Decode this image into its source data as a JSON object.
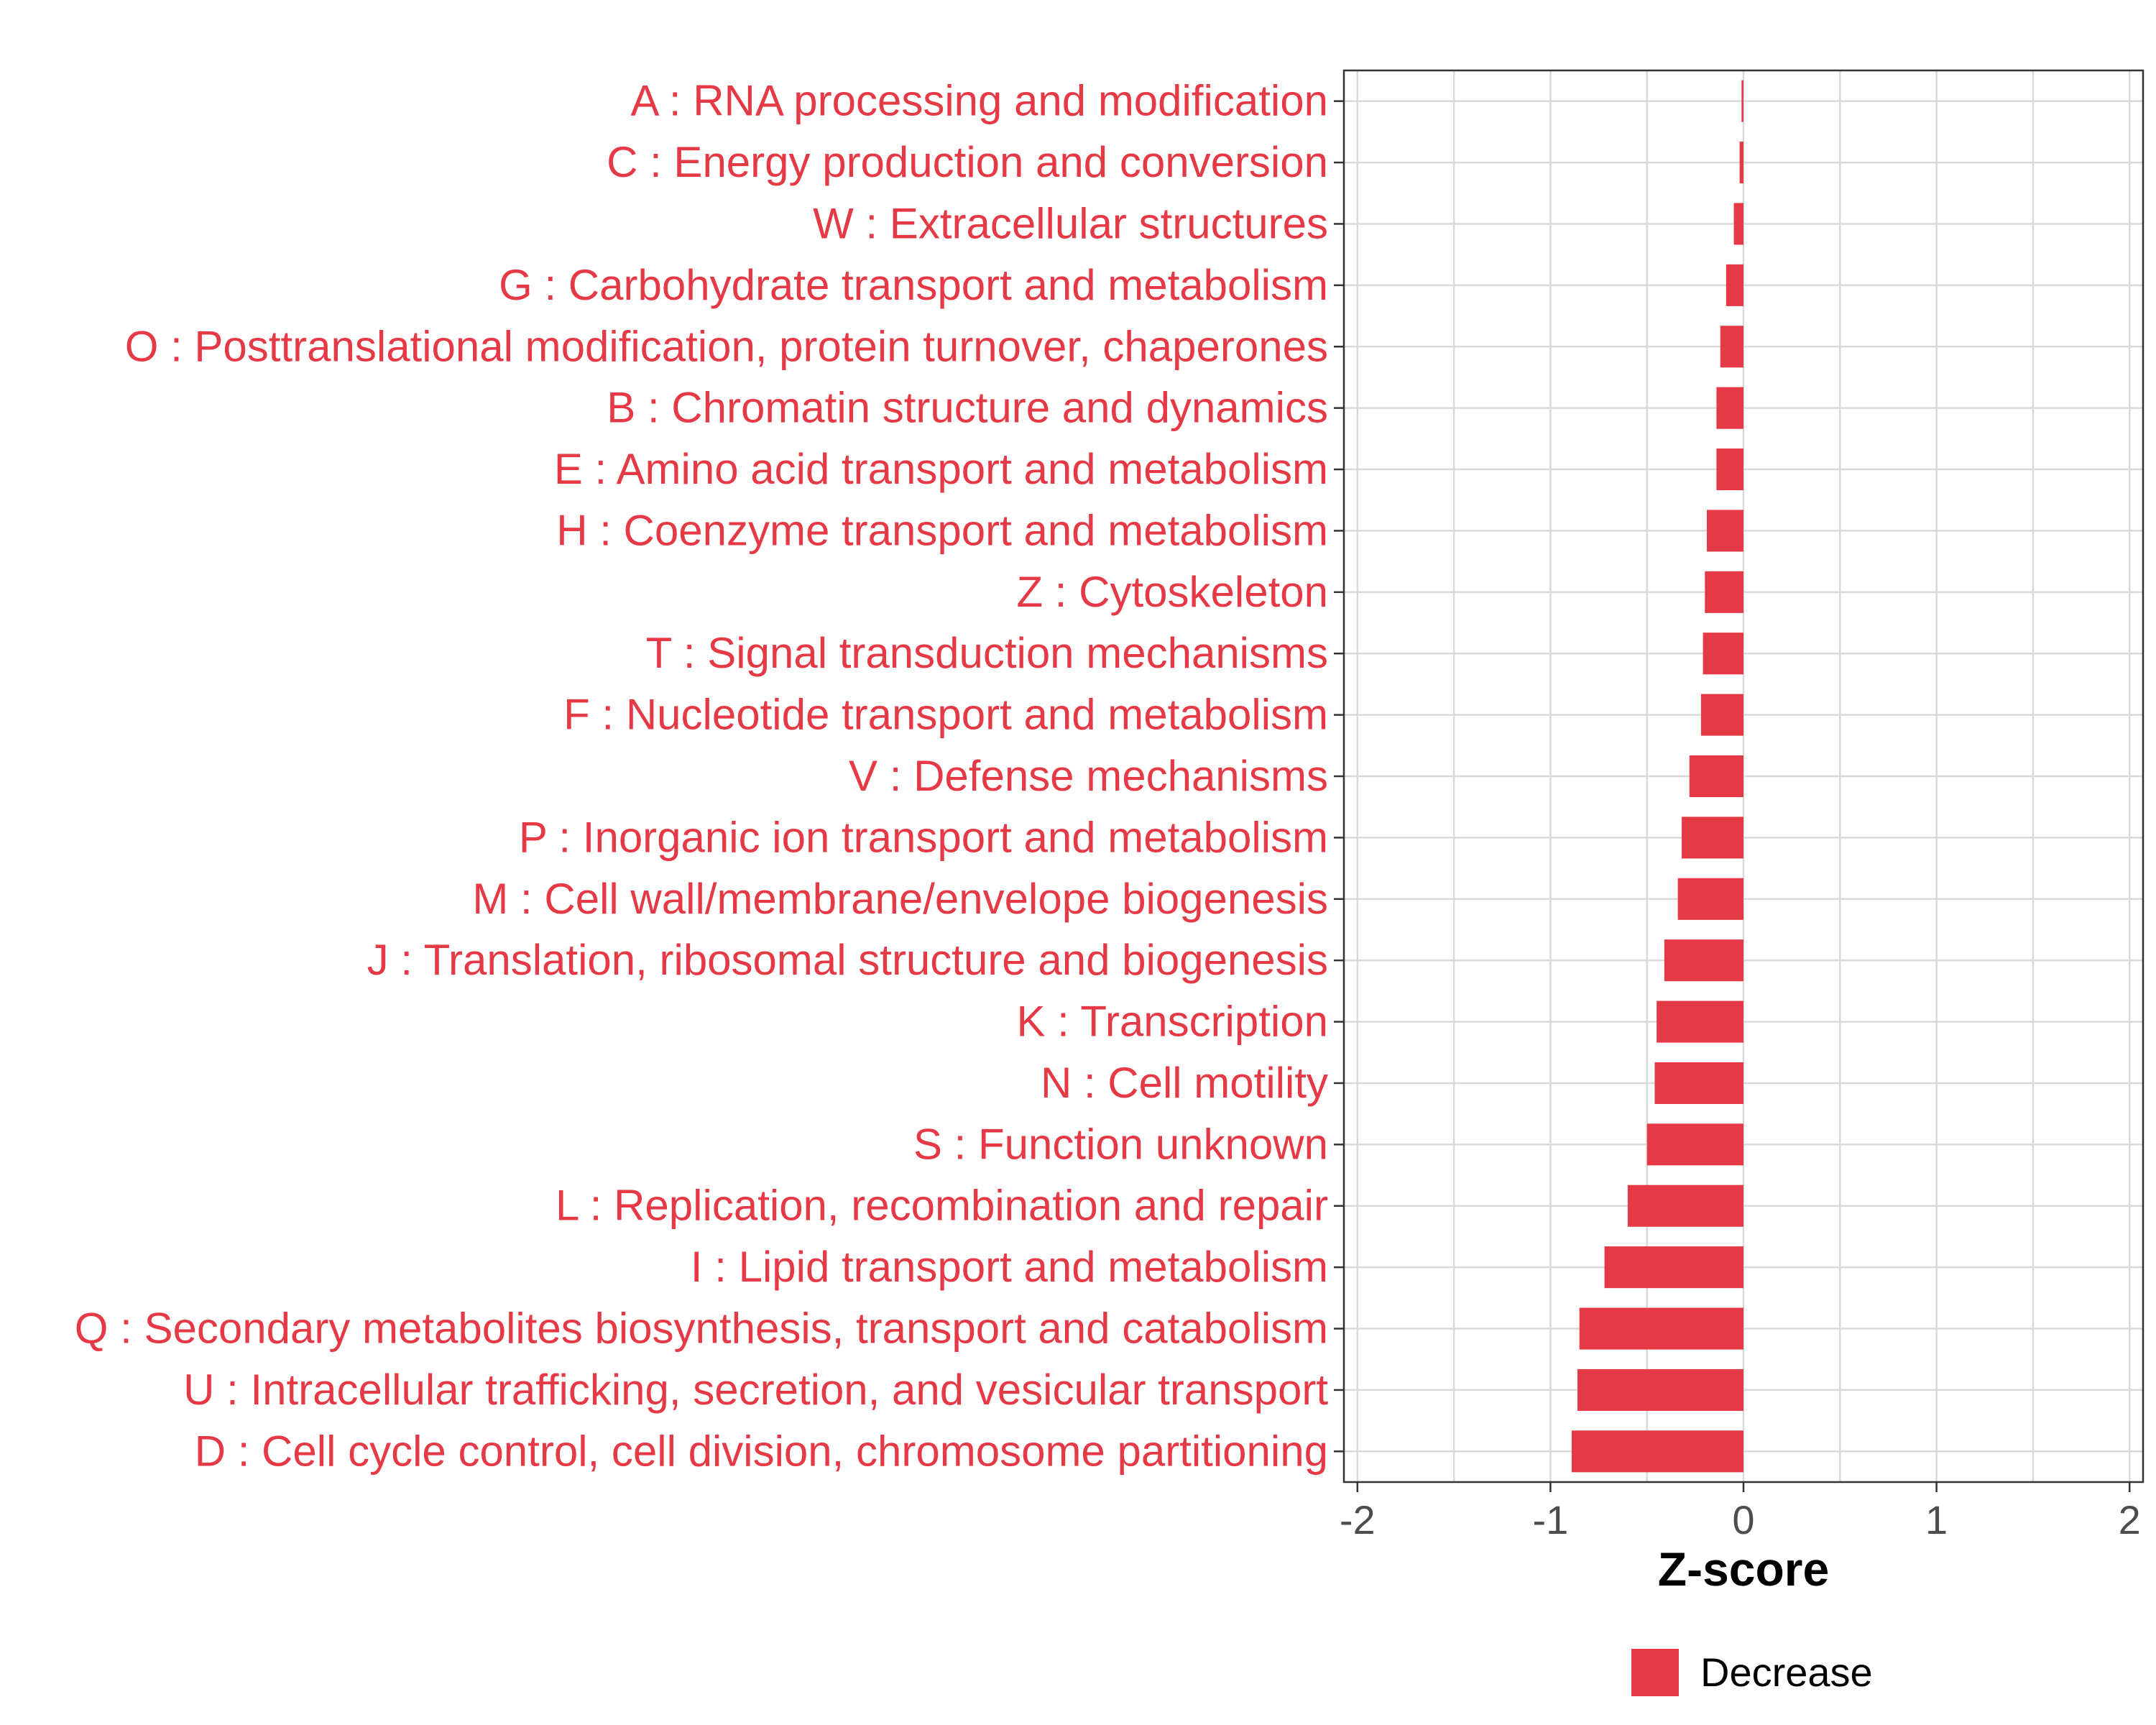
{
  "colors": {
    "decrease": "#e63946",
    "grid": "#d9d9d9",
    "axis": "#333333",
    "tick_text": "#4d4d4d"
  },
  "chart_data": {
    "type": "bar",
    "orientation": "horizontal",
    "categories": [
      "A : RNA processing and modification",
      "C : Energy production and conversion",
      "W : Extracellular structures",
      "G : Carbohydrate transport and metabolism",
      "O : Posttranslational modification, protein turnover, chaperones",
      "B : Chromatin structure and dynamics",
      "E : Amino acid transport and metabolism",
      "H : Coenzyme transport and metabolism",
      "Z : Cytoskeleton",
      "T : Signal transduction mechanisms",
      "F : Nucleotide transport and metabolism",
      "V : Defense mechanisms",
      "P : Inorganic ion transport and metabolism",
      "M : Cell wall/membrane/envelope biogenesis",
      "J : Translation, ribosomal structure and biogenesis",
      "K : Transcription",
      "N : Cell motility",
      "S : Function unknown",
      "L : Replication, recombination and repair",
      "I : Lipid transport and metabolism",
      "Q : Secondary metabolites biosynthesis, transport and catabolism",
      "U : Intracellular trafficking, secretion, and vesicular transport",
      "D : Cell cycle control, cell division, chromosome partitioning"
    ],
    "values": [
      -0.01,
      -0.02,
      -0.05,
      -0.09,
      -0.12,
      -0.14,
      -0.14,
      -0.19,
      -0.2,
      -0.21,
      -0.22,
      -0.28,
      -0.32,
      -0.34,
      -0.41,
      -0.45,
      -0.46,
      -0.5,
      -0.6,
      -0.72,
      -0.85,
      -0.86,
      -0.89
    ],
    "series_name": "Decrease",
    "xlabel": "Z-score",
    "ylabel": "",
    "xlim": [
      -2.07,
      2.07
    ],
    "x_ticks": [
      -2,
      -1,
      0,
      1,
      2
    ],
    "x_tick_labels": [
      "-2",
      "-1",
      "0",
      "1",
      "2"
    ],
    "grid": true,
    "legend": {
      "position": "bottom",
      "entries": [
        "Decrease"
      ]
    }
  }
}
